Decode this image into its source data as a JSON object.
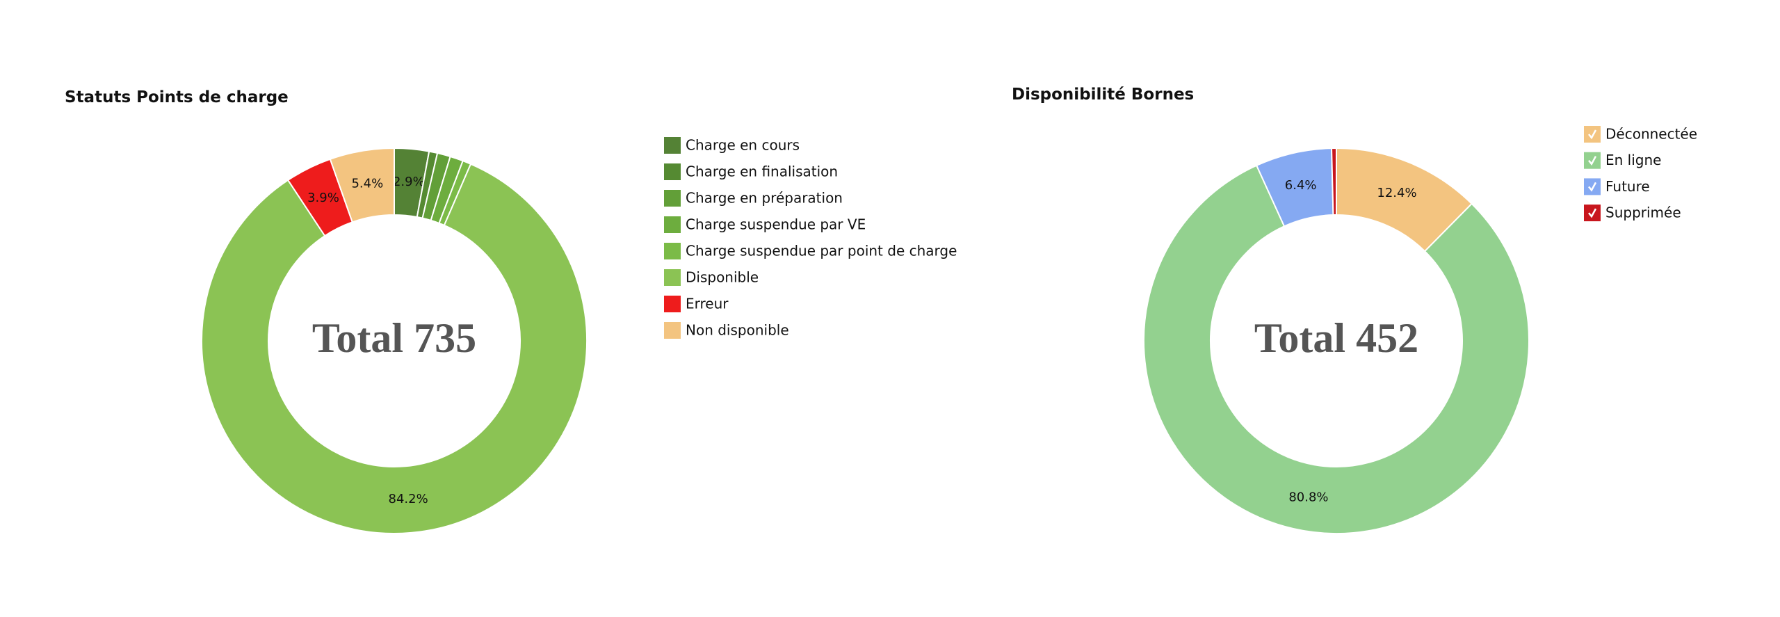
{
  "chart_data": [
    {
      "type": "donut",
      "title": "Statuts Points de charge",
      "center_text": "Total 735",
      "categories": [
        "Charge en cours",
        "Charge en finalisation",
        "Charge en préparation",
        "Charge suspendue par VE",
        "Charge suspendue par point de charge",
        "Disponible",
        "Erreur",
        "Non disponible"
      ],
      "values": [
        2.9,
        0.7,
        1.1,
        1.1,
        0.7,
        84.2,
        3.9,
        5.4
      ],
      "value_labels": [
        "2.9%",
        null,
        null,
        null,
        null,
        "84.2%",
        "3.9%",
        "5.4%"
      ],
      "colors": [
        "#548235",
        "#558a32",
        "#629f38",
        "#6dad3e",
        "#7bbb47",
        "#8bc354",
        "#ee1c1c",
        "#f3c480"
      ],
      "legend": "right",
      "legend_checkboxes": false
    },
    {
      "type": "donut",
      "title": "Disponibilité Bornes",
      "center_text": "Total 452",
      "categories": [
        "Déconnectée",
        "En ligne",
        "Future",
        "Supprimée"
      ],
      "values": [
        12.4,
        80.8,
        6.4,
        0.4
      ],
      "value_labels": [
        "12.4%",
        "80.8%",
        "6.4%",
        null
      ],
      "colors": [
        "#f3c480",
        "#93d18f",
        "#85a9f2",
        "#c8161d"
      ],
      "legend": "top-right",
      "legend_checkboxes": true
    }
  ]
}
